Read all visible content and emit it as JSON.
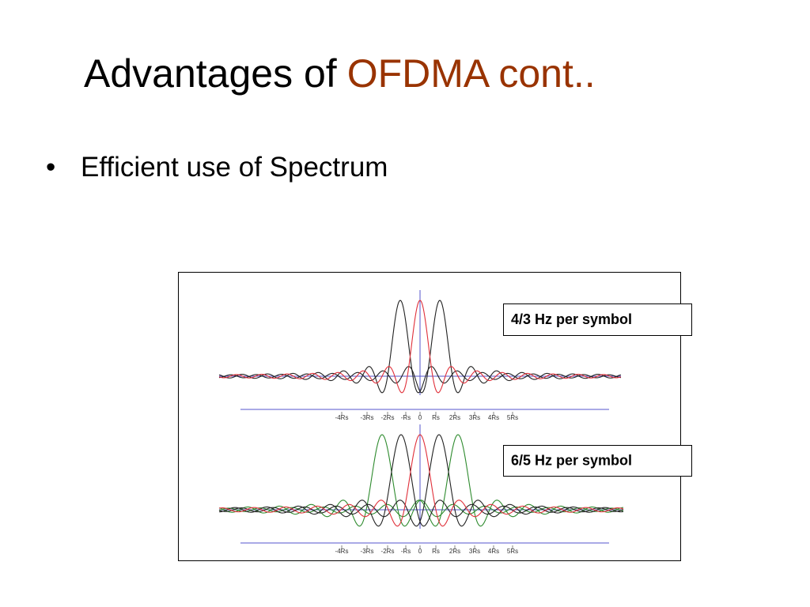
{
  "title": {
    "text": "Advantages of",
    "highlight": "OFDMA cont.."
  },
  "bullets": [
    "Efficient use of Spectrum"
  ],
  "figure": {
    "panels": [
      {
        "label": "4/3 Hz per symbol",
        "axis_labels": [
          "-4Rs",
          "-3Rs",
          "-2Rs",
          "-Rs",
          "0",
          "Rs",
          "2Rs",
          "3Rs",
          "4Rs",
          "5Rs"
        ]
      },
      {
        "label": "6/5 Hz per symbol",
        "axis_labels": [
          "-4Rs",
          "-3Rs",
          "-2Rs",
          "-Rs",
          "0",
          "Rs",
          "2Rs",
          "3Rs",
          "4Rs",
          "5Rs"
        ]
      }
    ]
  }
}
